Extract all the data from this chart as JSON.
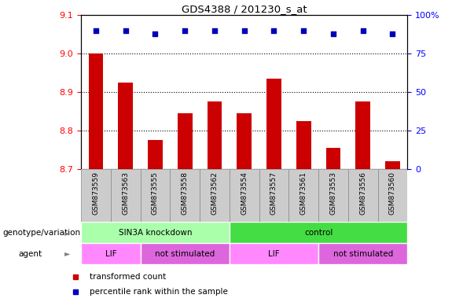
{
  "title": "GDS4388 / 201230_s_at",
  "samples": [
    "GSM873559",
    "GSM873563",
    "GSM873555",
    "GSM873558",
    "GSM873562",
    "GSM873554",
    "GSM873557",
    "GSM873561",
    "GSM873553",
    "GSM873556",
    "GSM873560"
  ],
  "transformed_count": [
    9.0,
    8.925,
    8.775,
    8.845,
    8.875,
    8.845,
    8.935,
    8.825,
    8.755,
    8.875,
    8.72
  ],
  "percentile_rank": [
    90,
    90,
    88,
    90,
    90,
    90,
    90,
    90,
    88,
    90,
    88
  ],
  "ylim_left": [
    8.7,
    9.1
  ],
  "ylim_right": [
    0,
    100
  ],
  "yticks_left": [
    8.7,
    8.8,
    8.9,
    9.0,
    9.1
  ],
  "yticks_right": [
    0,
    25,
    50,
    75,
    100
  ],
  "ytick_right_labels": [
    "0",
    "25",
    "50",
    "75",
    "100%"
  ],
  "bar_color": "#cc0000",
  "dot_color": "#0000bb",
  "genotype_groups": [
    {
      "label": "SIN3A knockdown",
      "start": 0,
      "end": 5,
      "color": "#aaffaa"
    },
    {
      "label": "control",
      "start": 5,
      "end": 11,
      "color": "#44dd44"
    }
  ],
  "agent_groups": [
    {
      "label": "LIF",
      "start": 0,
      "end": 2,
      "color": "#ff88ff"
    },
    {
      "label": "not stimulated",
      "start": 2,
      "end": 5,
      "color": "#dd66dd"
    },
    {
      "label": "LIF",
      "start": 5,
      "end": 8,
      "color": "#ff88ff"
    },
    {
      "label": "not stimulated",
      "start": 8,
      "end": 11,
      "color": "#dd66dd"
    }
  ],
  "sample_box_color": "#cccccc",
  "sample_box_edge": "#888888",
  "legend_items": [
    {
      "label": "transformed count",
      "color": "#cc0000"
    },
    {
      "label": "percentile rank within the sample",
      "color": "#0000bb"
    }
  ],
  "left_labels": [
    "genotype/variation",
    "agent"
  ],
  "arrow_char": "►"
}
